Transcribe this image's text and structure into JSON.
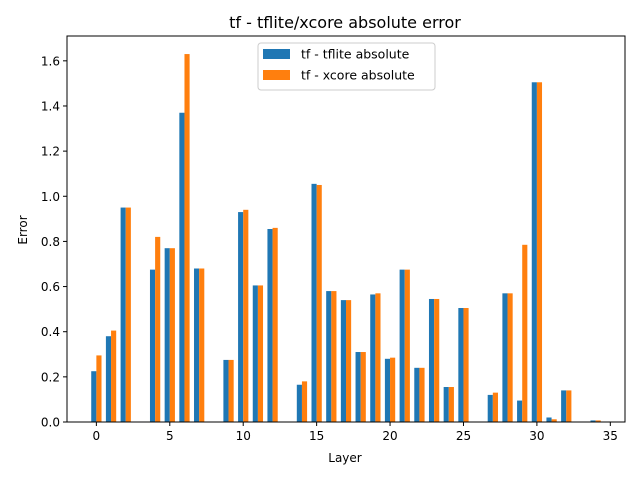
{
  "chart_data": {
    "type": "bar",
    "title": "tf - tflite/xcore absolute error",
    "xlabel": "Layer",
    "ylabel": "Error",
    "xlim": [
      -2,
      36
    ],
    "ylim": [
      0,
      1.71
    ],
    "xticks": [
      0,
      5,
      10,
      15,
      20,
      25,
      30,
      35
    ],
    "yticks": [
      0.0,
      0.2,
      0.4,
      0.6,
      0.8,
      1.0,
      1.2,
      1.4,
      1.6
    ],
    "ytick_labels": [
      "0.0",
      "0.2",
      "0.4",
      "0.6",
      "0.8",
      "1.0",
      "1.2",
      "1.4",
      "1.6"
    ],
    "grid": false,
    "legend_position": "top-center",
    "x": [
      0,
      1,
      2,
      4,
      5,
      6,
      7,
      9,
      10,
      11,
      12,
      14,
      15,
      16,
      17,
      18,
      19,
      20,
      21,
      22,
      23,
      24,
      25,
      27,
      28,
      29,
      30,
      31,
      32,
      34
    ],
    "series": [
      {
        "name": "tf - tflite absolute",
        "color": "#1f77b4",
        "values": [
          0.225,
          0.38,
          0.95,
          0.675,
          0.77,
          1.37,
          0.68,
          0.275,
          0.93,
          0.605,
          0.855,
          0.165,
          1.055,
          0.58,
          0.54,
          0.31,
          0.565,
          0.28,
          0.675,
          0.24,
          0.545,
          0.155,
          0.505,
          0.12,
          0.57,
          0.095,
          1.505,
          0.02,
          0.14,
          0.007
        ]
      },
      {
        "name": "tf - xcore absolute",
        "color": "#ff7f0e",
        "values": [
          0.295,
          0.405,
          0.95,
          0.82,
          0.77,
          1.63,
          0.68,
          0.275,
          0.94,
          0.605,
          0.86,
          0.18,
          1.05,
          0.58,
          0.54,
          0.31,
          0.57,
          0.285,
          0.675,
          0.24,
          0.545,
          0.155,
          0.505,
          0.13,
          0.57,
          0.785,
          1.505,
          0.012,
          0.14,
          0.007
        ]
      }
    ]
  }
}
